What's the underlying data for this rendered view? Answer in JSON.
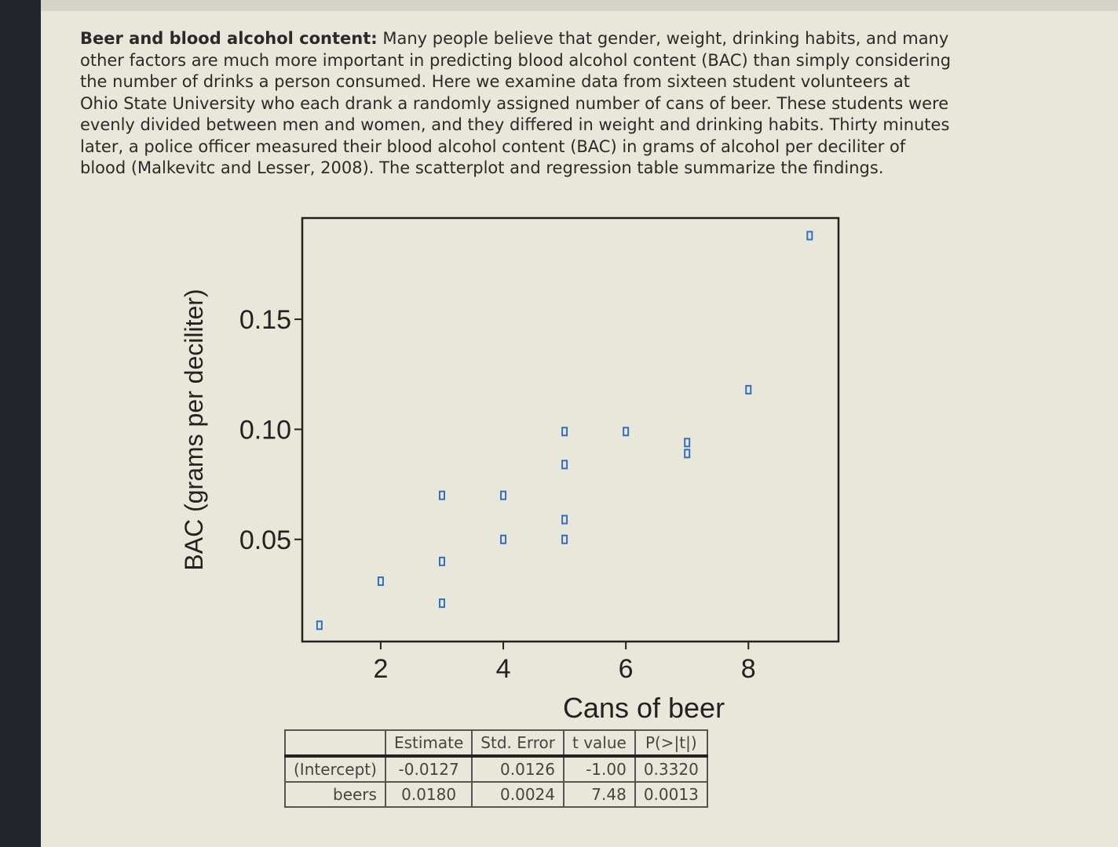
{
  "text": {
    "lead": "Beer and blood alcohol content:",
    "body": "Many people believe that gender, weight, drinking habits, and many other factors are much more important in predicting blood alcohol content (BAC) than simply considering the number of drinks a person consumed. Here we examine data from sixteen student volunteers at Ohio State University who each drank a randomly assigned number of cans of beer. These students were evenly divided between men and women, and they differed in weight and drinking habits. Thirty minutes later, a police officer measured their blood alcohol content (BAC) in grams of alcohol per deciliter of blood (Malkevitc and Lesser, 2008). The scatterplot and regression table summarize the findings."
  },
  "chart_data": {
    "type": "scatter",
    "x_label": "Cans of beer",
    "y_label": "BAC (grams per deciliter)",
    "x": [
      1,
      2,
      3,
      3,
      3,
      4,
      4,
      5,
      5,
      5,
      5,
      6,
      7,
      7,
      8,
      9
    ],
    "values": [
      0.011,
      0.031,
      0.07,
      0.04,
      0.021,
      0.07,
      0.05,
      0.099,
      0.084,
      0.059,
      0.05,
      0.099,
      0.094,
      0.089,
      0.118,
      0.188
    ],
    "color": "#2f6fc4",
    "xlim": [
      0.72,
      9.47
    ],
    "ylim": [
      0.0036,
      0.196
    ],
    "xticks": [
      2,
      4,
      6,
      8
    ],
    "yticks": [
      {
        "value": 0.05,
        "label": "0.05"
      },
      {
        "value": 0.1,
        "label": "0.10"
      },
      {
        "value": 0.15,
        "label": "0.15"
      }
    ]
  },
  "table": {
    "header": [
      "Estimate",
      "Std. Error",
      "t value",
      "P(>|t|)"
    ],
    "rows": [
      [
        "(Intercept)",
        "-0.0127",
        "0.0126",
        "-1.00",
        "0.3320"
      ],
      [
        "beers",
        "0.0180",
        "0.0024",
        "7.48",
        "0.0013"
      ]
    ]
  }
}
